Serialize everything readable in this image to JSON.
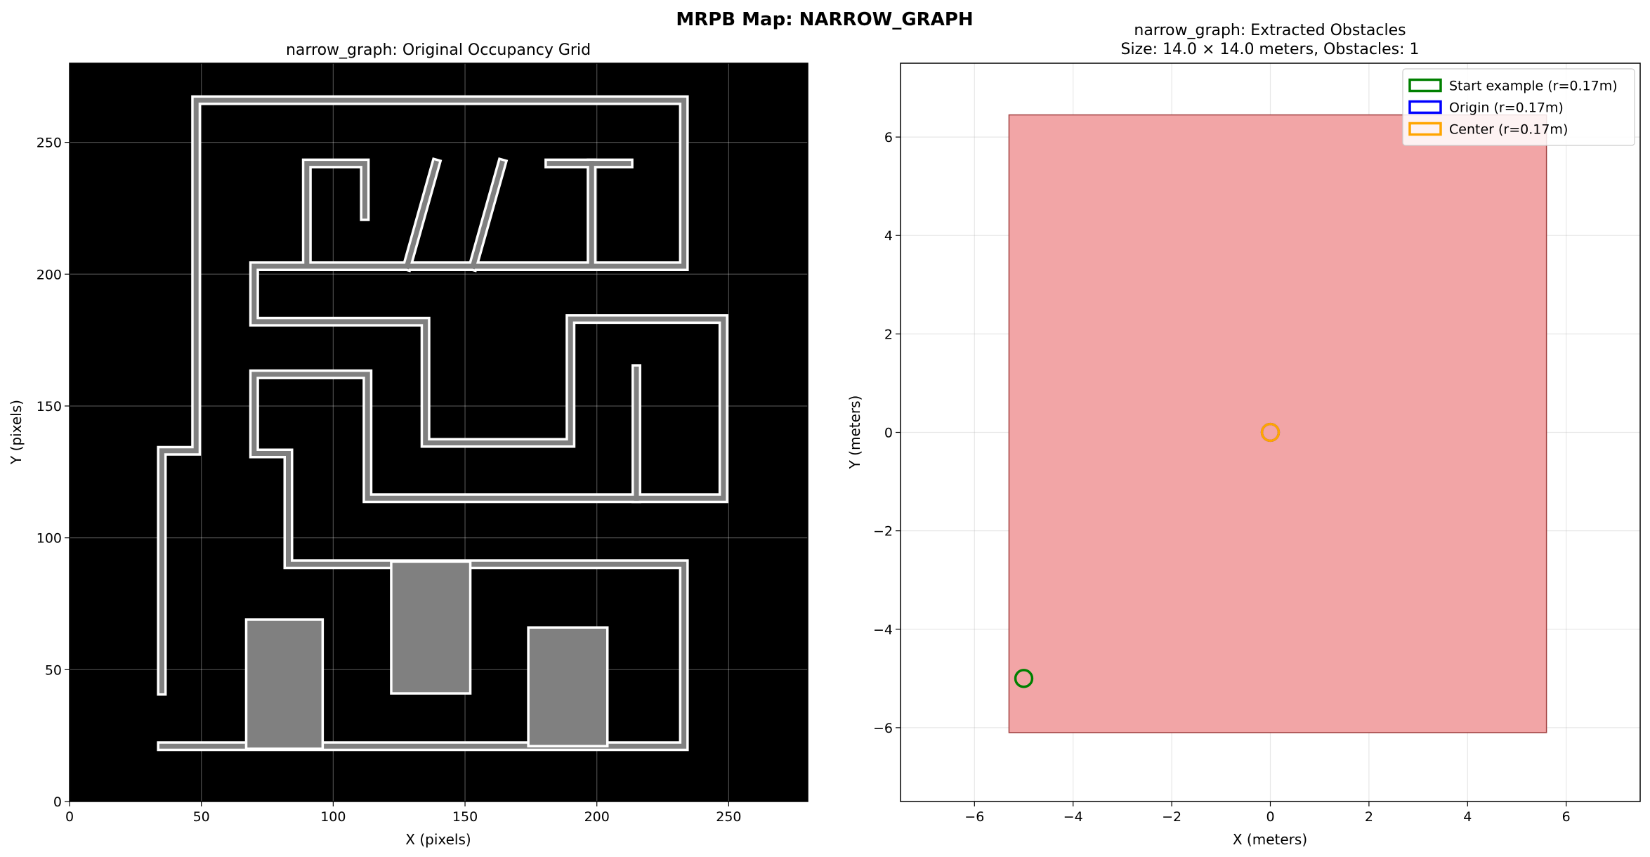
{
  "figure": {
    "suptitle": "MRPB Map: NARROW_GRAPH"
  },
  "chart_data": [
    {
      "type": "heatmap",
      "title": "narrow_graph: Original Occupancy Grid",
      "xlabel": "X (pixels)",
      "ylabel": "Y (pixels)",
      "xlim": [
        0,
        280
      ],
      "ylim": [
        0,
        280
      ],
      "xticks": [
        0,
        50,
        100,
        150,
        200,
        250
      ],
      "yticks": [
        0,
        50,
        100,
        150,
        200,
        250
      ],
      "grid": true,
      "background_color": "#000000",
      "wall_color": "#808080",
      "outline_color": "#ffffff",
      "walls": [
        {
          "points": [
            [
              35,
              42
            ],
            [
              35,
              133
            ],
            [
              48,
              133
            ],
            [
              48,
              266
            ],
            [
              233,
              266
            ],
            [
              233,
              203
            ],
            [
              70,
              203
            ],
            [
              70,
              182
            ],
            [
              135,
              182
            ],
            [
              135,
              136
            ],
            [
              190,
              136
            ],
            [
              190,
              183
            ],
            [
              248,
              183
            ],
            [
              248,
              115
            ],
            [
              113,
              115
            ],
            [
              113,
              162
            ],
            [
              70,
              162
            ],
            [
              70,
              132
            ],
            [
              83,
              132
            ],
            [
              83,
              90
            ],
            [
              233,
              90
            ],
            [
              233,
              21
            ],
            [
              35,
              21
            ]
          ],
          "closed": false
        },
        {
          "points": [
            [
              90,
              203
            ],
            [
              90,
              242
            ],
            [
              112,
              242
            ],
            [
              112,
              222
            ]
          ],
          "closed": false
        },
        {
          "points": [
            [
              128,
              203
            ],
            [
              139,
              242
            ]
          ],
          "closed": false
        },
        {
          "points": [
            [
              153,
              203
            ],
            [
              164,
              242
            ]
          ],
          "closed": false
        },
        {
          "points": [
            [
              182,
              242
            ],
            [
              212,
              242
            ]
          ],
          "closed": false
        },
        {
          "points": [
            [
              198,
              242
            ],
            [
              198,
              203
            ]
          ],
          "closed": false
        },
        {
          "points": [
            [
              215,
              164
            ],
            [
              215,
              115
            ]
          ],
          "closed": false
        }
      ],
      "blocks": [
        {
          "x0": 67,
          "y0": 20,
          "x1": 96,
          "y1": 69
        },
        {
          "x0": 122,
          "y0": 41,
          "x1": 152,
          "y1": 91
        },
        {
          "x0": 174,
          "y0": 21,
          "x1": 204,
          "y1": 66
        }
      ]
    },
    {
      "type": "scatter",
      "title": "narrow_graph: Extracted Obstacles",
      "subtitle": "Size: 14.0 × 14.0 meters, Obstacles: 1",
      "xlabel": "X (meters)",
      "ylabel": "Y (meters)",
      "xlim": [
        -7.5,
        7.5
      ],
      "ylim": [
        -7.5,
        7.5
      ],
      "xticks": [
        -6,
        -4,
        -2,
        0,
        2,
        4,
        6
      ],
      "yticks": [
        -6,
        -4,
        -2,
        0,
        2,
        4,
        6
      ],
      "xtick_labels": [
        "−6",
        "−4",
        "−2",
        "0",
        "2",
        "4",
        "6"
      ],
      "ytick_labels": [
        "−6",
        "−4",
        "−2",
        "0",
        "2",
        "4",
        "6"
      ],
      "grid": true,
      "obstacle": {
        "x0": -5.3,
        "y0": -6.1,
        "x1": 5.6,
        "y1": 6.45,
        "fill": "#f2a5a6",
        "edge": "#a14040"
      },
      "markers": [
        {
          "label": "Start example (r=0.17m)",
          "x": -5.0,
          "y": -5.0,
          "r": 0.17,
          "color": "#008000"
        },
        {
          "label": "Origin (r=0.17m)",
          "x": 0.0,
          "y": 0.0,
          "r": 0.17,
          "color": "#0000ff"
        },
        {
          "label": "Center (r=0.17m)",
          "x": 0.0,
          "y": 0.0,
          "r": 0.17,
          "color": "#ffa500"
        }
      ],
      "legend_position": "upper right"
    }
  ]
}
